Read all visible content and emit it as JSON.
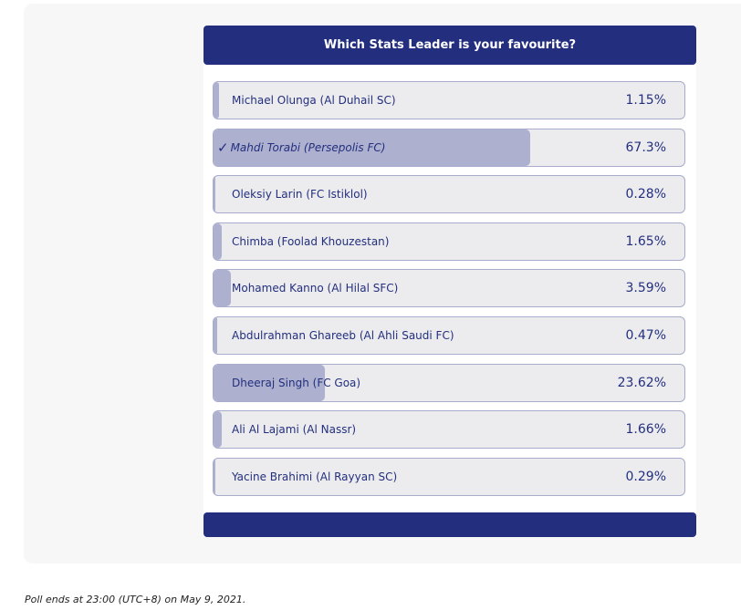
{
  "poll": {
    "title": "Which Stats Leader is your favourite?",
    "selected_index": 1,
    "check_glyph": "✓",
    "options": [
      {
        "label": "Michael Olunga (Al Duhail SC)",
        "percent_text": "1.15%",
        "percent": 1.15
      },
      {
        "label": "Mahdi Torabi (Persepolis FC)",
        "percent_text": "67.3%",
        "percent": 67.3
      },
      {
        "label": "Oleksiy Larin (FC Istiklol)",
        "percent_text": "0.28%",
        "percent": 0.28
      },
      {
        "label": "Chimba (Foolad Khouzestan)",
        "percent_text": "1.65%",
        "percent": 1.65
      },
      {
        "label": "Mohamed Kanno (Al Hilal SFC)",
        "percent_text": "3.59%",
        "percent": 3.59
      },
      {
        "label": "Abdulrahman Ghareeb (Al Ahli Saudi FC)",
        "percent_text": "0.47%",
        "percent": 0.47
      },
      {
        "label": "Dheeraj Singh (FC Goa)",
        "percent_text": "23.62%",
        "percent": 23.62
      },
      {
        "label": "Ali Al Lajami (Al Nassr)",
        "percent_text": "1.66%",
        "percent": 1.66
      },
      {
        "label": "Yacine Brahimi (Al Rayyan SC)",
        "percent_text": "0.29%",
        "percent": 0.29
      }
    ]
  },
  "footer_note": "Poll ends at 23:00 (UTC+8) on May 9, 2021.",
  "colors": {
    "header_bg": "#232f7e",
    "bar_fill": "#adb0cf",
    "option_bg": "#ececee",
    "text": "#232f7e"
  }
}
